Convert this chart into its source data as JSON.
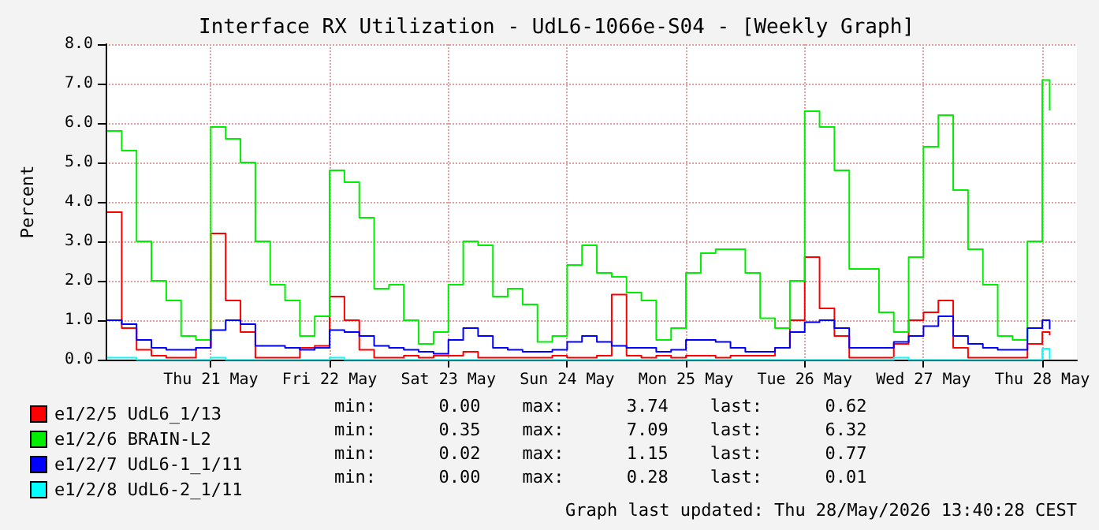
{
  "chart_data": {
    "type": "step",
    "title": "Interface RX Utilization - UdL6-1066e-S04 - [Weekly Graph]",
    "ylabel": "Percent",
    "x": [
      "2026-05-20T15:00",
      "2026-05-20T18:00",
      "2026-05-20T21:00",
      "2026-05-21T00:00",
      "2026-05-21T03:00",
      "2026-05-21T06:00",
      "2026-05-21T09:00",
      "2026-05-21T12:00",
      "2026-05-21T15:00",
      "2026-05-21T18:00",
      "2026-05-21T21:00",
      "2026-05-22T00:00",
      "2026-05-22T03:00",
      "2026-05-22T06:00",
      "2026-05-22T09:00",
      "2026-05-22T12:00",
      "2026-05-22T15:00",
      "2026-05-22T18:00",
      "2026-05-22T21:00",
      "2026-05-23T00:00",
      "2026-05-23T03:00",
      "2026-05-23T06:00",
      "2026-05-23T09:00",
      "2026-05-23T12:00",
      "2026-05-23T15:00",
      "2026-05-23T18:00",
      "2026-05-23T21:00",
      "2026-05-24T00:00",
      "2026-05-24T03:00",
      "2026-05-24T06:00",
      "2026-05-24T09:00",
      "2026-05-24T12:00",
      "2026-05-24T15:00",
      "2026-05-24T18:00",
      "2026-05-24T21:00",
      "2026-05-25T00:00",
      "2026-05-25T03:00",
      "2026-05-25T06:00",
      "2026-05-25T09:00",
      "2026-05-25T12:00",
      "2026-05-25T15:00",
      "2026-05-25T18:00",
      "2026-05-25T21:00",
      "2026-05-26T00:00",
      "2026-05-26T03:00",
      "2026-05-26T06:00",
      "2026-05-26T09:00",
      "2026-05-26T12:00",
      "2026-05-26T15:00",
      "2026-05-26T18:00",
      "2026-05-26T21:00",
      "2026-05-27T00:00",
      "2026-05-27T03:00",
      "2026-05-27T06:00",
      "2026-05-27T09:00",
      "2026-05-27T12:00",
      "2026-05-27T15:00",
      "2026-05-27T18:00",
      "2026-05-27T21:00",
      "2026-05-28T00:00",
      "2026-05-28T03:00",
      "2026-05-28T06:00",
      "2026-05-28T09:00",
      "2026-05-28T12:00",
      "2026-05-28T13:30"
    ],
    "series": [
      {
        "name": "e1/2/5 UdL6_1/13",
        "color": "#ff0000",
        "values": [
          3.74,
          0.8,
          0.25,
          0.1,
          0.05,
          0.05,
          0.3,
          3.2,
          1.5,
          0.7,
          0.05,
          0.05,
          0.05,
          0.3,
          0.35,
          1.6,
          1.0,
          0.25,
          0.05,
          0.05,
          0.1,
          0.05,
          0.1,
          0.1,
          0.2,
          0.05,
          0.05,
          0.05,
          0.05,
          0.05,
          0.1,
          0.05,
          0.05,
          0.1,
          1.65,
          0.1,
          0.05,
          0.1,
          0.05,
          0.1,
          0.1,
          0.05,
          0.1,
          0.1,
          0.1,
          0.3,
          1.0,
          2.6,
          1.3,
          0.6,
          0.05,
          0.05,
          0.05,
          0.4,
          1.0,
          1.2,
          1.5,
          0.3,
          0.05,
          0.05,
          0.05,
          0.05,
          0.4,
          0.7,
          0.62
        ]
      },
      {
        "name": "e1/2/6 BRAIN-L2",
        "color": "#00ee00",
        "values": [
          5.8,
          5.3,
          3.0,
          2.0,
          1.5,
          0.6,
          0.5,
          5.9,
          5.6,
          5.0,
          3.0,
          1.9,
          1.5,
          0.6,
          1.1,
          4.8,
          4.5,
          3.6,
          1.8,
          1.9,
          1.0,
          0.4,
          0.7,
          1.9,
          3.0,
          2.9,
          1.6,
          1.8,
          1.4,
          0.45,
          0.6,
          2.4,
          2.9,
          2.2,
          2.1,
          1.7,
          1.5,
          0.5,
          0.8,
          2.2,
          2.7,
          2.8,
          2.8,
          2.2,
          1.05,
          0.8,
          2.0,
          6.3,
          5.9,
          4.8,
          2.3,
          2.3,
          1.2,
          0.7,
          2.6,
          5.4,
          6.2,
          4.3,
          2.8,
          1.9,
          0.6,
          0.5,
          3.0,
          7.09,
          6.32
        ]
      },
      {
        "name": "e1/2/7 UdL6-1_1/11",
        "color": "#0000ff",
        "values": [
          1.0,
          0.9,
          0.5,
          0.3,
          0.25,
          0.25,
          0.3,
          0.75,
          1.0,
          0.9,
          0.35,
          0.35,
          0.3,
          0.25,
          0.3,
          0.75,
          0.7,
          0.6,
          0.35,
          0.3,
          0.25,
          0.2,
          0.15,
          0.5,
          0.8,
          0.6,
          0.3,
          0.25,
          0.2,
          0.2,
          0.25,
          0.45,
          0.6,
          0.45,
          0.35,
          0.3,
          0.3,
          0.2,
          0.25,
          0.5,
          0.5,
          0.45,
          0.3,
          0.2,
          0.2,
          0.3,
          0.7,
          0.95,
          1.0,
          0.8,
          0.3,
          0.3,
          0.3,
          0.45,
          0.6,
          0.85,
          1.1,
          0.6,
          0.4,
          0.3,
          0.25,
          0.25,
          0.8,
          1.0,
          0.77
        ]
      },
      {
        "name": "e1/2/8 UdL6-2_1/11",
        "color": "#00ffff",
        "values": [
          0.05,
          0.05,
          0.0,
          0.0,
          0.0,
          0.0,
          0.0,
          0.05,
          0.0,
          0.0,
          0.0,
          0.0,
          0.0,
          0.0,
          0.0,
          0.05,
          0.0,
          0.0,
          0.0,
          0.0,
          0.0,
          0.0,
          0.0,
          0.0,
          0.0,
          0.0,
          0.0,
          0.0,
          0.0,
          0.0,
          0.0,
          0.0,
          0.0,
          0.0,
          0.0,
          0.0,
          0.0,
          0.0,
          0.0,
          0.0,
          0.0,
          0.0,
          0.0,
          0.0,
          0.0,
          0.0,
          0.0,
          0.0,
          0.0,
          0.0,
          0.0,
          0.0,
          0.0,
          0.05,
          0.0,
          0.0,
          0.0,
          0.0,
          0.0,
          0.0,
          0.0,
          0.0,
          0.0,
          0.28,
          0.01
        ]
      }
    ],
    "xlim": [
      "2026-05-20T14:45",
      "2026-05-28T19:00"
    ],
    "xticks": [
      {
        "value": "2026-05-21T12:00",
        "label": "Thu 21 May"
      },
      {
        "value": "2026-05-22T12:00",
        "label": "Fri 22 May"
      },
      {
        "value": "2026-05-23T12:00",
        "label": "Sat 23 May"
      },
      {
        "value": "2026-05-24T12:00",
        "label": "Sun 24 May"
      },
      {
        "value": "2026-05-25T12:00",
        "label": "Mon 25 May"
      },
      {
        "value": "2026-05-26T12:00",
        "label": "Tue 26 May"
      },
      {
        "value": "2026-05-27T12:00",
        "label": "Wed 27 May"
      },
      {
        "value": "2026-05-28T12:00",
        "label": "Thu 28 May"
      }
    ],
    "ylim": [
      0,
      8
    ],
    "yticks": [
      {
        "value": 0,
        "label": "0.0"
      },
      {
        "value": 1,
        "label": "1.0"
      },
      {
        "value": 2,
        "label": "2.0"
      },
      {
        "value": 3,
        "label": "3.0"
      },
      {
        "value": 4,
        "label": "4.0"
      },
      {
        "value": 5,
        "label": "5.0"
      },
      {
        "value": 6,
        "label": "6.0"
      },
      {
        "value": 7,
        "label": "7.0"
      },
      {
        "value": 8,
        "label": "8.0"
      }
    ],
    "grid": true,
    "legend": "bottom left",
    "annotations": [
      "min:      0.00    max:      3.74    last:      0.62",
      "min:      0.35    max:      7.09    last:      6.32",
      "min:      0.02    max:      1.15    last:      0.77",
      "min:      0.00    max:      0.28    last:      0.01",
      "Graph last updated: Thu 28/May/2026 13:40:28 CEST"
    ]
  }
}
